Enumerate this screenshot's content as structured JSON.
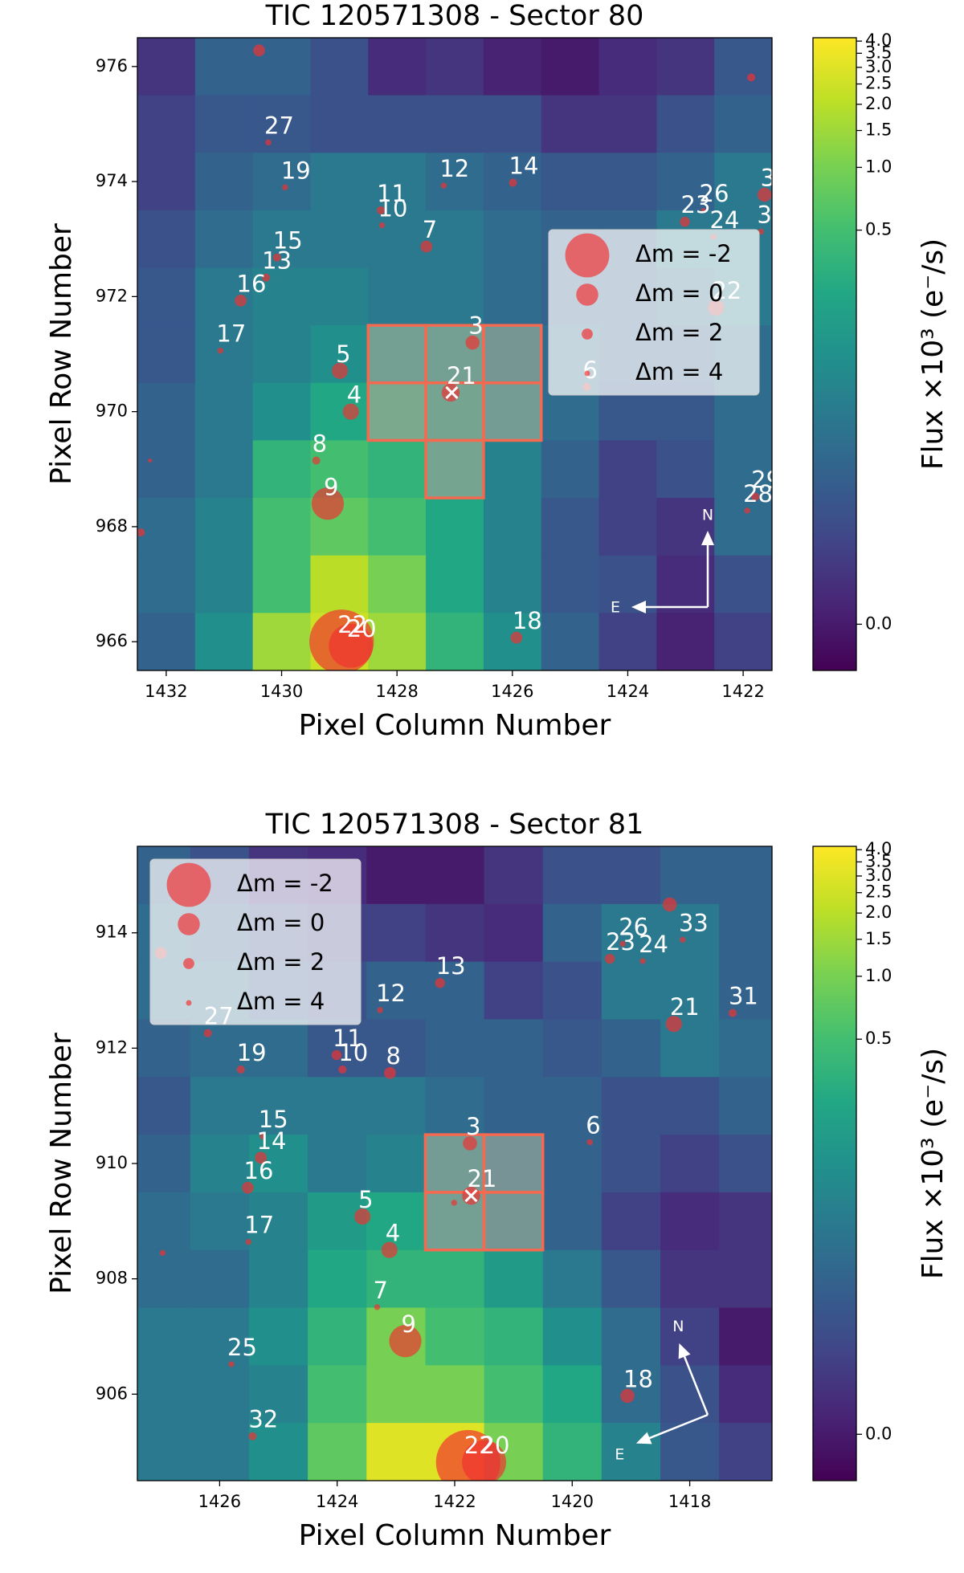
{
  "chart_data": [
    {
      "type": "heatmap",
      "title": "TIC 120571308 - Sector 80",
      "xlabel": "Pixel Column Number",
      "ylabel": "Pixel Row Number",
      "colorbar_label": "Flux ×10³ (e⁻/s)",
      "colormap": "viridis",
      "cscale": "log",
      "clim": [
        -0.0027,
        4.15
      ],
      "cticks": [
        {
          "value": 0,
          "label": "0.0"
        },
        {
          "value": 0.5,
          "label": "0.5"
        },
        {
          "value": 1.0,
          "label": "1.0"
        },
        {
          "value": 1.5,
          "label": "1.5"
        },
        {
          "value": 2.0,
          "label": "2.0"
        },
        {
          "value": 2.5,
          "label": "2.5"
        },
        {
          "value": 3.0,
          "label": "3.0"
        },
        {
          "value": 3.5,
          "label": "3.5"
        },
        {
          "value": 4.0,
          "label": "4.0"
        }
      ],
      "xlim": [
        1432.5,
        1421.5
      ],
      "ylim": [
        965.5,
        976.5
      ],
      "xticks": [
        1432,
        1430,
        1428,
        1426,
        1424,
        1422
      ],
      "yticks": [
        966,
        968,
        970,
        972,
        974,
        976
      ],
      "columns": [
        1432,
        1431,
        1430,
        1429,
        1428,
        1427,
        1426,
        1425,
        1424,
        1423,
        1422
      ],
      "rows": [
        976,
        975,
        974,
        973,
        972,
        971,
        970,
        969,
        968,
        967,
        966
      ],
      "values": [
        [
          0.005,
          0.03,
          0.03,
          0.016,
          0.003,
          0.005,
          0.001,
          0.0,
          0.003,
          0.005,
          0.02
        ],
        [
          0.009,
          0.02,
          0.02,
          0.016,
          0.016,
          0.016,
          0.016,
          0.005,
          0.005,
          0.016,
          0.03
        ],
        [
          0.009,
          0.03,
          0.04,
          0.06,
          0.06,
          0.04,
          0.03,
          0.02,
          0.02,
          0.03,
          0.06
        ],
        [
          0.016,
          0.04,
          0.06,
          0.06,
          0.06,
          0.06,
          0.04,
          0.03,
          0.03,
          0.06,
          0.06
        ],
        [
          0.02,
          0.06,
          0.08,
          0.08,
          0.06,
          0.06,
          0.04,
          0.03,
          0.03,
          0.04,
          0.06
        ],
        [
          0.02,
          0.06,
          0.08,
          0.12,
          0.17,
          0.17,
          0.08,
          0.04,
          0.03,
          0.03,
          0.04
        ],
        [
          0.03,
          0.06,
          0.12,
          0.25,
          0.36,
          0.25,
          0.12,
          0.04,
          0.02,
          0.02,
          0.04
        ],
        [
          0.03,
          0.06,
          0.36,
          0.5,
          0.36,
          0.25,
          0.08,
          0.03,
          0.009,
          0.016,
          0.04
        ],
        [
          0.04,
          0.08,
          0.5,
          0.73,
          0.5,
          0.25,
          0.08,
          0.02,
          0.009,
          0.005,
          0.04
        ],
        [
          0.04,
          0.08,
          0.5,
          2.0,
          1.0,
          0.25,
          0.08,
          0.02,
          0.016,
          0.003,
          0.016
        ],
        [
          0.03,
          0.12,
          1.5,
          2.4,
          1.5,
          0.36,
          0.12,
          0.03,
          0.009,
          0.001,
          0.009
        ]
      ],
      "aperture": [
        [
          1428,
          971
        ],
        [
          1427,
          971
        ],
        [
          1426,
          971
        ],
        [
          1428,
          970
        ],
        [
          1427,
          970
        ],
        [
          1426,
          970
        ],
        [
          1427,
          969
        ]
      ],
      "aperture_color": "#f4694f",
      "target": [
        1427.05,
        970.33
      ],
      "marker_color": "#f03030",
      "stars": [
        {
          "label": null,
          "x": 1430.39,
          "y": 976.28,
          "dm": 1.8
        },
        {
          "label": null,
          "x": 1421.86,
          "y": 975.81,
          "dm": 2.9
        },
        {
          "label": "27",
          "x": 1430.23,
          "y": 974.68,
          "dm": 3.8
        },
        {
          "label": "19",
          "x": 1429.94,
          "y": 973.9,
          "dm": 3.8
        },
        {
          "label": "11",
          "x": 1428.28,
          "y": 973.5,
          "dm": 2.9
        },
        {
          "label": "10",
          "x": 1428.26,
          "y": 973.24,
          "dm": 3.8
        },
        {
          "label": "12",
          "x": 1427.19,
          "y": 973.93,
          "dm": 3.8
        },
        {
          "label": "14",
          "x": 1425.99,
          "y": 973.98,
          "dm": 2.9
        },
        {
          "label": "7",
          "x": 1427.49,
          "y": 972.87,
          "dm": 1.8
        },
        {
          "label": "15",
          "x": 1430.08,
          "y": 972.68,
          "dm": 2.9
        },
        {
          "label": "13",
          "x": 1430.27,
          "y": 972.33,
          "dm": 2.9
        },
        {
          "label": "16",
          "x": 1430.71,
          "y": 971.93,
          "dm": 1.8
        },
        {
          "label": "17",
          "x": 1431.06,
          "y": 971.06,
          "dm": 3.8
        },
        {
          "label": "5",
          "x": 1428.99,
          "y": 970.71,
          "dm": 0.9
        },
        {
          "label": "3",
          "x": 1426.69,
          "y": 971.2,
          "dm": 1.3
        },
        {
          "label": "21",
          "x": 1427.07,
          "y": 970.33,
          "dm": 0.6
        },
        {
          "label": "4",
          "x": 1428.8,
          "y": 970.0,
          "dm": 0.9
        },
        {
          "label": "6",
          "x": 1424.71,
          "y": 970.43,
          "dm": 2.9
        },
        {
          "label": "8",
          "x": 1429.4,
          "y": 969.15,
          "dm": 2.9
        },
        {
          "label": "9",
          "x": 1429.2,
          "y": 968.4,
          "dm": -1.1
        },
        {
          "label": "22",
          "x": 1428.96,
          "y": 966.0,
          "dm": -3.1
        },
        {
          "label": "20",
          "x": 1428.8,
          "y": 965.93,
          "dm": -2.0
        },
        {
          "label": "18",
          "x": 1425.93,
          "y": 966.07,
          "dm": 1.8
        },
        {
          "label": "23",
          "x": 1423.01,
          "y": 973.3,
          "dm": 2.3
        },
        {
          "label": "26",
          "x": 1422.69,
          "y": 973.5,
          "dm": 4.5
        },
        {
          "label": "24",
          "x": 1422.51,
          "y": 973.04,
          "dm": 3.8
        },
        {
          "label": "3",
          "x": 1421.63,
          "y": 973.77,
          "dm": 1.3
        },
        {
          "label": "3",
          "x": 1421.69,
          "y": 973.13,
          "dm": 3.8
        },
        {
          "label": "22",
          "x": 1422.47,
          "y": 971.81,
          "dm": 0.9
        },
        {
          "label": "29",
          "x": 1421.79,
          "y": 968.52,
          "dm": 2.9
        },
        {
          "label": "28",
          "x": 1421.93,
          "y": 968.28,
          "dm": 3.8
        },
        {
          "label": null,
          "x": 1432.28,
          "y": 969.15,
          "dm": 4.9
        },
        {
          "label": null,
          "x": 1432.44,
          "y": 967.9,
          "dm": 2.9
        }
      ],
      "legend_loc": "center right",
      "legend": [
        {
          "label": "Δm = -2",
          "dm": -2
        },
        {
          "label": "Δm = 0",
          "dm": 0
        },
        {
          "label": "Δm = 2",
          "dm": 2
        },
        {
          "label": "Δm = 4",
          "dm": 4
        }
      ],
      "compass": [
        "N",
        "E"
      ]
    },
    {
      "type": "heatmap",
      "title": "TIC 120571308 - Sector 81",
      "xlabel": "Pixel Column Number",
      "ylabel": "Pixel Row Number",
      "colorbar_label": "Flux ×10³ (e⁻/s)",
      "colormap": "viridis",
      "cscale": "log",
      "clim": [
        -0.0027,
        4.15
      ],
      "cticks": [
        {
          "value": 0,
          "label": "0.0"
        },
        {
          "value": 0.5,
          "label": "0.5"
        },
        {
          "value": 1.0,
          "label": "1.0"
        },
        {
          "value": 1.5,
          "label": "1.5"
        },
        {
          "value": 2.0,
          "label": "2.0"
        },
        {
          "value": 2.5,
          "label": "2.5"
        },
        {
          "value": 3.0,
          "label": "3.0"
        },
        {
          "value": 3.5,
          "label": "3.5"
        },
        {
          "value": 4.0,
          "label": "4.0"
        }
      ],
      "xlim": [
        1427.4,
        1416.6
      ],
      "ylim": [
        904.5,
        915.5
      ],
      "xticks": [
        1426,
        1424,
        1422,
        1420,
        1418
      ],
      "yticks": [
        906,
        908,
        910,
        912,
        914
      ],
      "columns": [
        1427,
        1426,
        1425,
        1424,
        1423,
        1422,
        1421,
        1420,
        1419,
        1418,
        1417
      ],
      "rows": [
        915,
        914,
        913,
        912,
        911,
        910,
        909,
        908,
        907,
        906,
        905
      ],
      "values": [
        [
          0.03,
          0.016,
          0.005,
          0.003,
          0.0,
          0.0,
          0.005,
          0.016,
          0.016,
          0.03,
          0.03
        ],
        [
          0.04,
          0.03,
          0.016,
          0.009,
          0.009,
          0.005,
          0.003,
          0.03,
          0.06,
          0.06,
          0.03
        ],
        [
          0.04,
          0.04,
          0.02,
          0.016,
          0.03,
          0.03,
          0.009,
          0.016,
          0.06,
          0.06,
          0.03
        ],
        [
          0.03,
          0.04,
          0.04,
          0.02,
          0.02,
          0.03,
          0.03,
          0.02,
          0.03,
          0.06,
          0.04
        ],
        [
          0.02,
          0.06,
          0.06,
          0.06,
          0.06,
          0.04,
          0.03,
          0.03,
          0.016,
          0.016,
          0.03
        ],
        [
          0.03,
          0.08,
          0.12,
          0.06,
          0.08,
          0.12,
          0.06,
          0.03,
          0.016,
          0.009,
          0.016
        ],
        [
          0.04,
          0.06,
          0.08,
          0.17,
          0.25,
          0.17,
          0.08,
          0.03,
          0.009,
          0.003,
          0.005
        ],
        [
          0.04,
          0.04,
          0.08,
          0.25,
          0.36,
          0.36,
          0.17,
          0.06,
          0.02,
          0.005,
          0.005
        ],
        [
          0.06,
          0.06,
          0.12,
          0.36,
          1.0,
          0.5,
          0.36,
          0.12,
          0.04,
          0.009,
          0.0
        ],
        [
          0.06,
          0.06,
          0.08,
          0.5,
          1.0,
          1.0,
          0.5,
          0.25,
          0.04,
          0.016,
          0.003
        ],
        [
          0.06,
          0.06,
          0.12,
          0.73,
          3.0,
          3.0,
          1.0,
          0.36,
          0.08,
          0.02,
          0.009
        ]
      ],
      "aperture": [
        [
          1422,
          910
        ],
        [
          1421,
          910
        ],
        [
          1422,
          909
        ],
        [
          1421,
          909
        ]
      ],
      "aperture_color": "#f4694f",
      "target": [
        1421.72,
        909.44
      ],
      "marker_color": "#f03030",
      "stars": [
        {
          "label": null,
          "x": 1418.34,
          "y": 914.49,
          "dm": 1.3
        },
        {
          "label": "33",
          "x": 1418.12,
          "y": 913.88,
          "dm": 3.8
        },
        {
          "label": "26",
          "x": 1419.14,
          "y": 913.81,
          "dm": 3.8
        },
        {
          "label": "23",
          "x": 1419.36,
          "y": 913.55,
          "dm": 2.3
        },
        {
          "label": "24",
          "x": 1418.8,
          "y": 913.51,
          "dm": 3.8
        },
        {
          "label": "21",
          "x": 1418.27,
          "y": 912.42,
          "dm": 0.9
        },
        {
          "label": "31",
          "x": 1417.27,
          "y": 912.61,
          "dm": 2.9
        },
        {
          "label": "13",
          "x": 1422.25,
          "y": 913.13,
          "dm": 2.3
        },
        {
          "label": "12",
          "x": 1423.27,
          "y": 912.66,
          "dm": 3.8
        },
        {
          "label": "27",
          "x": 1426.2,
          "y": 912.26,
          "dm": 2.9
        },
        {
          "label": "19",
          "x": 1425.64,
          "y": 911.63,
          "dm": 2.9
        },
        {
          "label": "11",
          "x": 1424.01,
          "y": 911.88,
          "dm": 2.3
        },
        {
          "label": "10",
          "x": 1423.91,
          "y": 911.63,
          "dm": 2.9
        },
        {
          "label": "8",
          "x": 1423.1,
          "y": 911.57,
          "dm": 1.8
        },
        {
          "label": "15",
          "x": 1425.27,
          "y": 910.47,
          "dm": 3.8
        },
        {
          "label": "14",
          "x": 1425.3,
          "y": 910.1,
          "dm": 1.8
        },
        {
          "label": "16",
          "x": 1425.52,
          "y": 909.58,
          "dm": 1.8
        },
        {
          "label": "17",
          "x": 1425.51,
          "y": 908.64,
          "dm": 3.8
        },
        {
          "label": "3",
          "x": 1421.74,
          "y": 910.35,
          "dm": 1.3
        },
        {
          "label": "21",
          "x": 1421.72,
          "y": 909.44,
          "dm": 0.6
        },
        {
          "label": null,
          "x": 1422.01,
          "y": 909.32,
          "dm": 3.8
        },
        {
          "label": "5",
          "x": 1423.57,
          "y": 909.08,
          "dm": 0.9
        },
        {
          "label": "4",
          "x": 1423.11,
          "y": 908.5,
          "dm": 0.9
        },
        {
          "label": "6",
          "x": 1419.7,
          "y": 910.37,
          "dm": 3.8
        },
        {
          "label": "7",
          "x": 1423.32,
          "y": 907.51,
          "dm": 3.8
        },
        {
          "label": "9",
          "x": 1422.84,
          "y": 906.92,
          "dm": -1.1
        },
        {
          "label": "18",
          "x": 1419.06,
          "y": 905.97,
          "dm": 1.3
        },
        {
          "label": "25",
          "x": 1425.8,
          "y": 906.52,
          "dm": 3.8
        },
        {
          "label": "32",
          "x": 1425.44,
          "y": 905.27,
          "dm": 2.9
        },
        {
          "label": "22",
          "x": 1421.77,
          "y": 904.82,
          "dm": -3.1
        },
        {
          "label": "20",
          "x": 1421.5,
          "y": 904.82,
          "dm": -2.0
        },
        {
          "label": null,
          "x": 1426.97,
          "y": 908.45,
          "dm": 3.8
        },
        {
          "label": null,
          "x": 1427.0,
          "y": 913.65,
          "dm": 1.8
        }
      ],
      "legend_loc": "upper left",
      "legend": [
        {
          "label": "Δm = -2",
          "dm": -2
        },
        {
          "label": "Δm = 0",
          "dm": 0
        },
        {
          "label": "Δm = 2",
          "dm": 2
        },
        {
          "label": "Δm = 4",
          "dm": 4
        }
      ],
      "compass": [
        "N",
        "E"
      ]
    }
  ]
}
